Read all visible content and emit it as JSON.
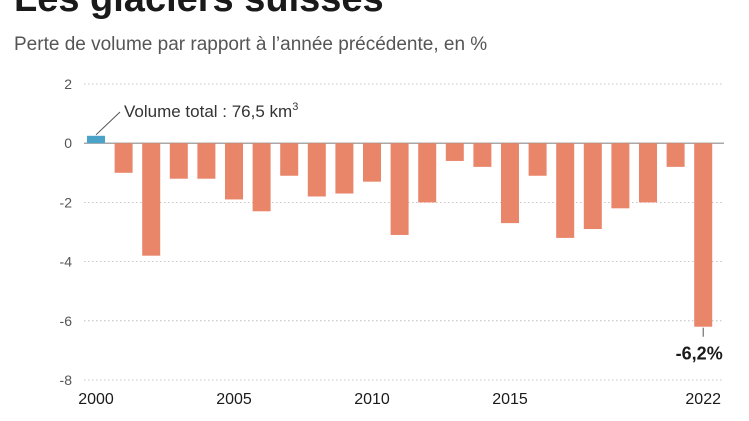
{
  "title": "Les glaciers suisses",
  "subtitle": "Perte de volume par rapport à l’année précédente, en %",
  "colors": {
    "negative_bar": "#e9866a",
    "positive_bar": "#4ba3c7",
    "gridline": "#b5b5b5",
    "zero_line": "#8c8c8c"
  },
  "chart_data": {
    "type": "bar",
    "x": [
      2001,
      2002,
      2003,
      2004,
      2005,
      2006,
      2007,
      2008,
      2009,
      2010,
      2011,
      2012,
      2013,
      2014,
      2015,
      2016,
      2017,
      2018,
      2019,
      2020,
      2021,
      2022
    ],
    "values": [
      -1.0,
      -3.8,
      -1.2,
      -1.2,
      -1.9,
      -2.3,
      -1.1,
      -1.8,
      -1.7,
      -1.3,
      -3.1,
      -2.0,
      -0.6,
      -0.8,
      -2.7,
      -1.1,
      -3.2,
      -2.9,
      -2.2,
      -2.0,
      -0.8,
      -6.2
    ],
    "baseline": {
      "x": 2000,
      "value": 0.25
    },
    "x_ticks": [
      "2000",
      "2005",
      "2010",
      "2015",
      "2022"
    ],
    "y_ticks": [
      "2",
      "0",
      "-2",
      "-4",
      "-6",
      "-8"
    ],
    "ylim": [
      -8,
      2
    ],
    "grid": true,
    "annotation_baseline": "Volume total : 76,5 km",
    "annotation_baseline_sup": "3",
    "annotation_last": "-6,2%"
  }
}
